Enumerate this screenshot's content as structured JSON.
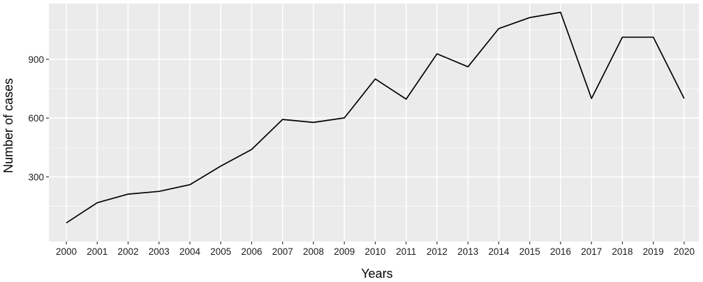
{
  "chart_data": {
    "type": "line",
    "title": "",
    "xlabel": "Years",
    "ylabel": "Number of cases",
    "x": [
      "2000",
      "2001",
      "2002",
      "2003",
      "2004",
      "2005",
      "2006",
      "2007",
      "2008",
      "2009",
      "2010",
      "2011",
      "2012",
      "2013",
      "2014",
      "2015",
      "2016",
      "2017",
      "2018",
      "2019",
      "2020"
    ],
    "series": [
      {
        "values": [
          65,
          168,
          212,
          226,
          260,
          355,
          440,
          593,
          578,
          601,
          800,
          697,
          928,
          862,
          1057,
          1113,
          1140,
          700,
          1013,
          1013,
          700
        ]
      }
    ],
    "yticks": [
      300,
      600,
      900
    ],
    "ytick_labels": [
      "300",
      "600",
      "900"
    ],
    "ylim": [
      -30,
      1185
    ],
    "grid": true,
    "legend": "none",
    "colors": {
      "panel_background": "#ebebeb",
      "grid_major": "#ffffff",
      "line": "#000000",
      "tick": "#333333",
      "tick_label": "#1a1a1a"
    }
  }
}
